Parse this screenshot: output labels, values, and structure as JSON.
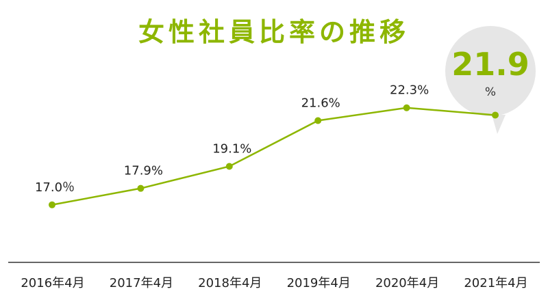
{
  "colors": {
    "accent": "#8db600",
    "axis": "#333333",
    "bubble": "#e6e6e6",
    "text": "#222222"
  },
  "chart_data": {
    "type": "line",
    "title": "女性社員比率の推移",
    "categories": [
      "2016年4月",
      "2017年4月",
      "2018年4月",
      "2019年4月",
      "2020年4月",
      "2021年4月"
    ],
    "values": [
      17.0,
      17.9,
      19.1,
      21.6,
      22.3,
      21.9
    ],
    "data_labels": [
      "17.0％",
      "17.9%",
      "19.1%",
      "21.6%",
      "22.3%",
      null
    ],
    "unit": "%",
    "ylim": [
      15,
      25
    ],
    "grid": false,
    "legend": "none",
    "callout": {
      "value": "21.9",
      "unit": "%"
    }
  }
}
